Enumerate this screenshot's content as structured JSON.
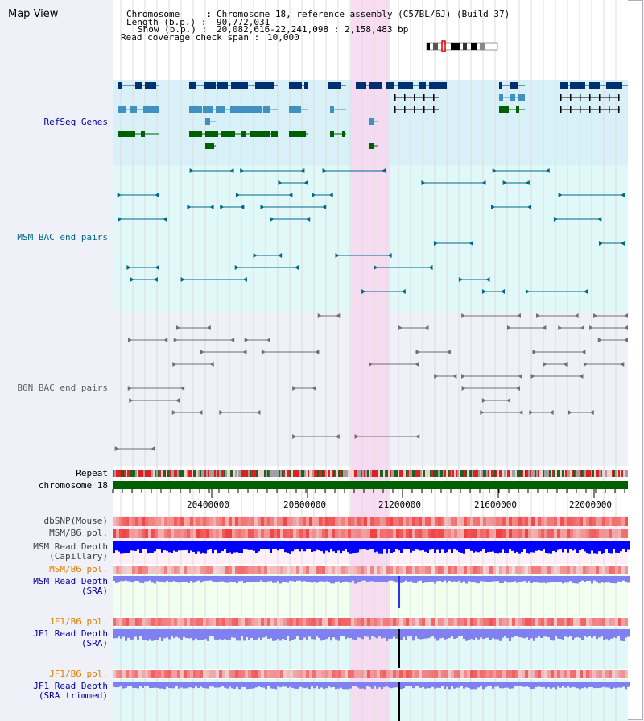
{
  "title": "Map View",
  "info": {
    "chromosome_label": "Chromosome     :",
    "chromosome_value": "Chromosome 18, reference assembly (C57BL/6J) (Build 37)",
    "length_label": "Length (b.p.) :",
    "length_value": "90,772,031",
    "show_label": "Show (b.p.) :",
    "show_value": "20,082,616-22,241,098 : 2,158,483 bp",
    "span_label": "Read coverage check span :",
    "span_value": "10,000"
  },
  "tracks": {
    "refseq": "RefSeq Genes",
    "msm_bac": "MSM BAC end pairs",
    "b6n_bac": "B6N BAC end pairs",
    "repeat": "Repeat",
    "chromosome": "chromosome 18",
    "dbsnp": "dbSNP(Mouse)",
    "msm_b6_pol": "MSM/B6 pol.",
    "msm_depth_cap_1": "MSM Read Depth",
    "msm_depth_cap_2": "(Capillary)",
    "msm_b6_pol_2": "MSM/B6 pol.",
    "msm_depth_sra_1": "MSM Read Depth",
    "msm_depth_sra_2": "(SRA)",
    "jf1_b6_pol": "JF1/B6 pol.",
    "jf1_depth_sra_1": "JF1 Read Depth",
    "jf1_depth_sra_2": "(SRA)",
    "jf1_b6_pol_2": "JF1/B6 pol.",
    "jf1_depth_trim_1": "JF1 Read Depth",
    "jf1_depth_trim_2": "(SRA trimmed)"
  },
  "axis": {
    "ticks": [
      "20400000",
      "20800000",
      "21200000",
      "21600000",
      "22000000"
    ]
  },
  "colors": {
    "highlight": "#f8d8f0",
    "refseq_bg": "#d8f0f8",
    "msm_bg": "#e0f8f8",
    "b6n_bg": "#f0f0f8",
    "gene_dark": "#003070",
    "gene_light": "#4090c0",
    "gene_green": "#006000",
    "msm_bac": "#006888",
    "b6n_bac": "#707070",
    "depth_blue": "#0000ff",
    "depth_light": "#8080f0",
    "pol_red": "#f06060",
    "label_blue": "#0000a0",
    "label_orange": "#e08000"
  }
}
